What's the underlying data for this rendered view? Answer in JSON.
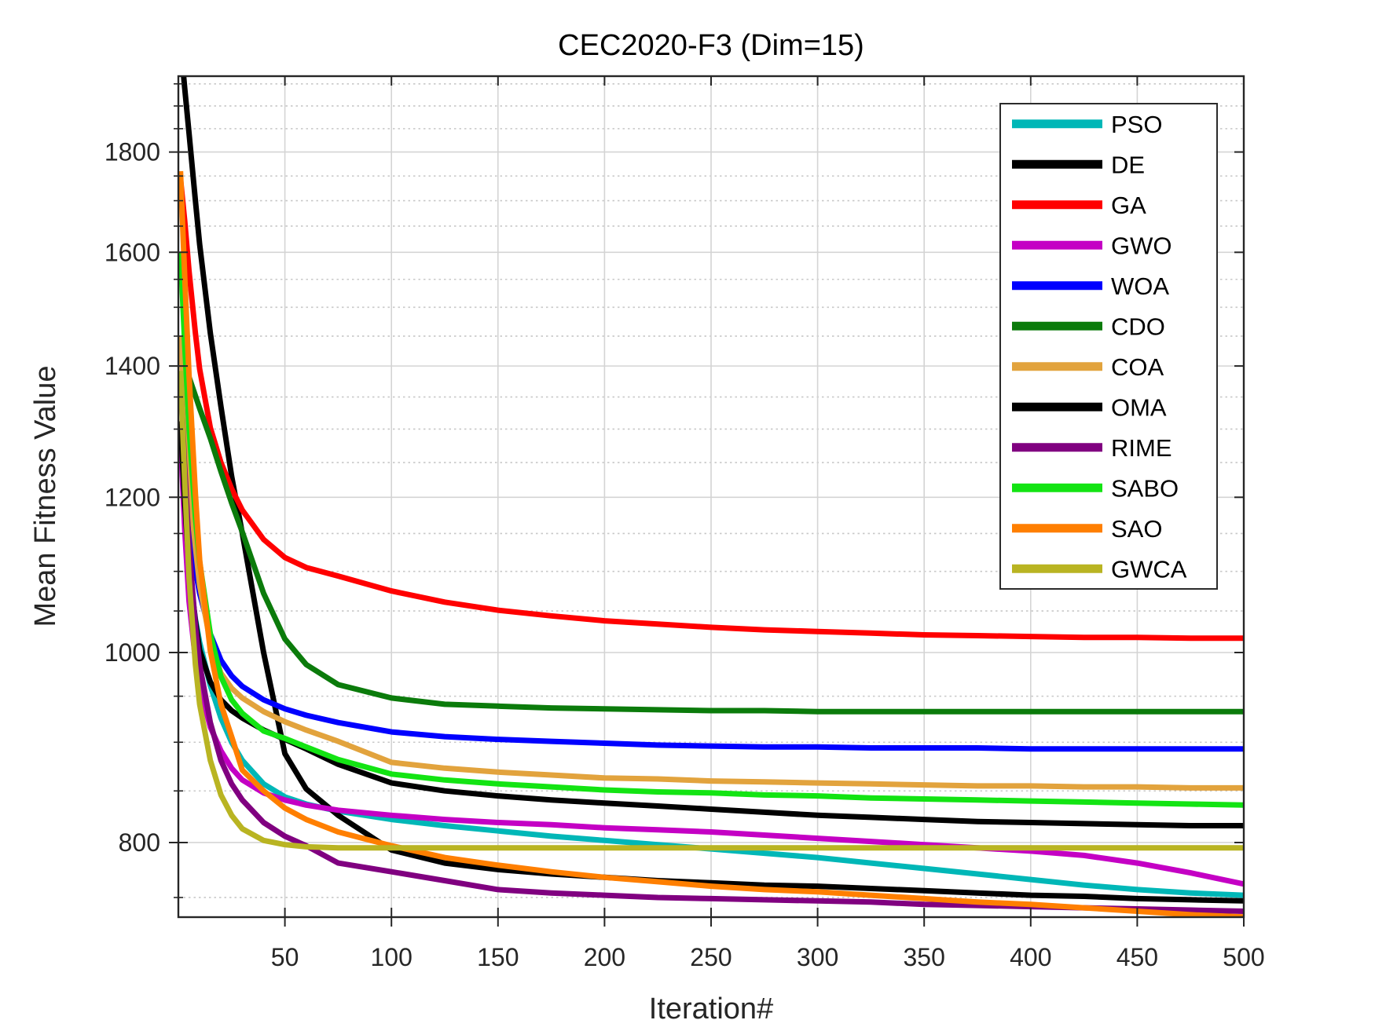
{
  "title": "CEC2020-F3 (Dim=15)",
  "chart_data": {
    "type": "line",
    "title": "CEC2020-F3 (Dim=15)",
    "xlabel": "Iteration#",
    "ylabel": "Mean Fitness Value",
    "x_scale": "linear",
    "y_scale": "log",
    "xlim": [
      0,
      500
    ],
    "ylim": [
      733,
      1968
    ],
    "xticks": [
      50,
      100,
      150,
      200,
      250,
      300,
      350,
      400,
      450,
      500
    ],
    "yticks": [
      800,
      1000,
      1200,
      1400,
      1600,
      1800
    ],
    "y_minor_step": 50,
    "grid": "major solid, minor dotted",
    "legend_position": "upper right",
    "x": [
      1,
      3,
      5,
      8,
      10,
      15,
      20,
      25,
      30,
      40,
      50,
      60,
      75,
      100,
      125,
      150,
      175,
      200,
      225,
      250,
      275,
      300,
      325,
      350,
      375,
      400,
      425,
      450,
      475,
      500
    ],
    "series": [
      {
        "name": "PSO",
        "color": "#00b7b7",
        "values": [
          1300,
          1185,
          1100,
          1040,
          1012,
          962,
          926,
          900,
          881,
          857,
          844,
          837,
          830,
          822,
          816,
          811,
          806,
          802,
          798,
          794,
          790,
          786,
          781,
          776,
          771,
          766,
          761,
          757,
          754,
          752
        ]
      },
      {
        "name": "DE",
        "color": "#000000",
        "values": [
          2050,
          1940,
          1840,
          1700,
          1615,
          1455,
          1335,
          1230,
          1150,
          1000,
          888,
          852,
          826,
          793,
          781,
          775,
          771,
          768,
          765,
          763,
          761,
          760,
          758,
          756,
          754,
          752,
          751,
          749,
          748,
          747
        ]
      },
      {
        "name": "GA",
        "color": "#ff0000",
        "values": [
          1745,
          1660,
          1565,
          1455,
          1395,
          1302,
          1250,
          1212,
          1182,
          1142,
          1118,
          1105,
          1094,
          1075,
          1061,
          1051,
          1044,
          1038,
          1034,
          1030,
          1027,
          1025,
          1023,
          1021,
          1020,
          1019,
          1018,
          1018,
          1017,
          1017
        ]
      },
      {
        "name": "GWO",
        "color": "#c400c4",
        "values": [
          1290,
          1155,
          1062,
          992,
          962,
          916,
          891,
          873,
          861,
          848,
          841,
          836,
          831,
          826,
          822,
          819,
          817,
          814,
          812,
          810,
          807,
          804,
          801,
          798,
          795,
          792,
          788,
          781,
          772,
          762
        ]
      },
      {
        "name": "WOA",
        "color": "#0000ff",
        "values": [
          1305,
          1232,
          1172,
          1102,
          1072,
          1022,
          991,
          973,
          961,
          946,
          936,
          929,
          921,
          911,
          906,
          903,
          901,
          899,
          897,
          896,
          895,
          895,
          894,
          894,
          894,
          893,
          893,
          893,
          893,
          893
        ]
      },
      {
        "name": "CDO",
        "color": "#0b7b0b",
        "values": [
          1430,
          1405,
          1382,
          1352,
          1332,
          1286,
          1237,
          1192,
          1152,
          1072,
          1016,
          986,
          963,
          948,
          941,
          939,
          937,
          936,
          935,
          934,
          934,
          933,
          933,
          933,
          933,
          933,
          933,
          933,
          933,
          933
        ]
      },
      {
        "name": "COA",
        "color": "#e2a33d",
        "values": [
          1450,
          1322,
          1222,
          1132,
          1082,
          1012,
          976,
          959,
          948,
          933,
          922,
          913,
          901,
          879,
          873,
          869,
          866,
          863,
          862,
          860,
          859,
          858,
          857,
          856,
          855,
          855,
          854,
          854,
          853,
          853
        ]
      },
      {
        "name": "OMA",
        "color": "#000000",
        "values": [
          1312,
          1192,
          1106,
          1038,
          1003,
          966,
          946,
          934,
          926,
          913,
          903,
          893,
          877,
          858,
          850,
          845,
          841,
          838,
          835,
          832,
          829,
          826,
          824,
          822,
          820,
          819,
          818,
          817,
          816,
          816
        ]
      },
      {
        "name": "RIME",
        "color": "#800080",
        "values": [
          1380,
          1242,
          1132,
          1032,
          986,
          921,
          881,
          857,
          841,
          819,
          806,
          797,
          781,
          773,
          765,
          757,
          754,
          752,
          750,
          749,
          748,
          747,
          746,
          744,
          743,
          742,
          741,
          740,
          739,
          738
        ]
      },
      {
        "name": "SABO",
        "color": "#13e413",
        "values": [
          1600,
          1435,
          1302,
          1172,
          1112,
          1022,
          972,
          946,
          931,
          912,
          904,
          895,
          882,
          867,
          861,
          857,
          854,
          851,
          849,
          848,
          846,
          845,
          843,
          842,
          841,
          840,
          839,
          838,
          837,
          836
        ]
      },
      {
        "name": "SAO",
        "color": "#ff7f00",
        "values": [
          1760,
          1555,
          1385,
          1205,
          1115,
          1002,
          941,
          906,
          871,
          850,
          833,
          822,
          810,
          797,
          786,
          779,
          773,
          768,
          764,
          760,
          757,
          755,
          752,
          749,
          746,
          744,
          741,
          738,
          735,
          733
        ]
      },
      {
        "name": "GWCA",
        "color": "#b9b422",
        "values": [
          1392,
          1222,
          1092,
          986,
          941,
          881,
          846,
          826,
          813,
          802,
          798,
          796,
          795,
          795,
          795,
          795,
          795,
          795,
          795,
          795,
          795,
          795,
          795,
          795,
          795,
          795,
          795,
          795,
          795,
          795
        ]
      }
    ]
  },
  "colors": {
    "axis": "#262626",
    "major_grid": "#d4d4d4",
    "minor_grid": "#c8c8c8",
    "legend_border": "#2b2b2b",
    "background": "#ffffff"
  }
}
